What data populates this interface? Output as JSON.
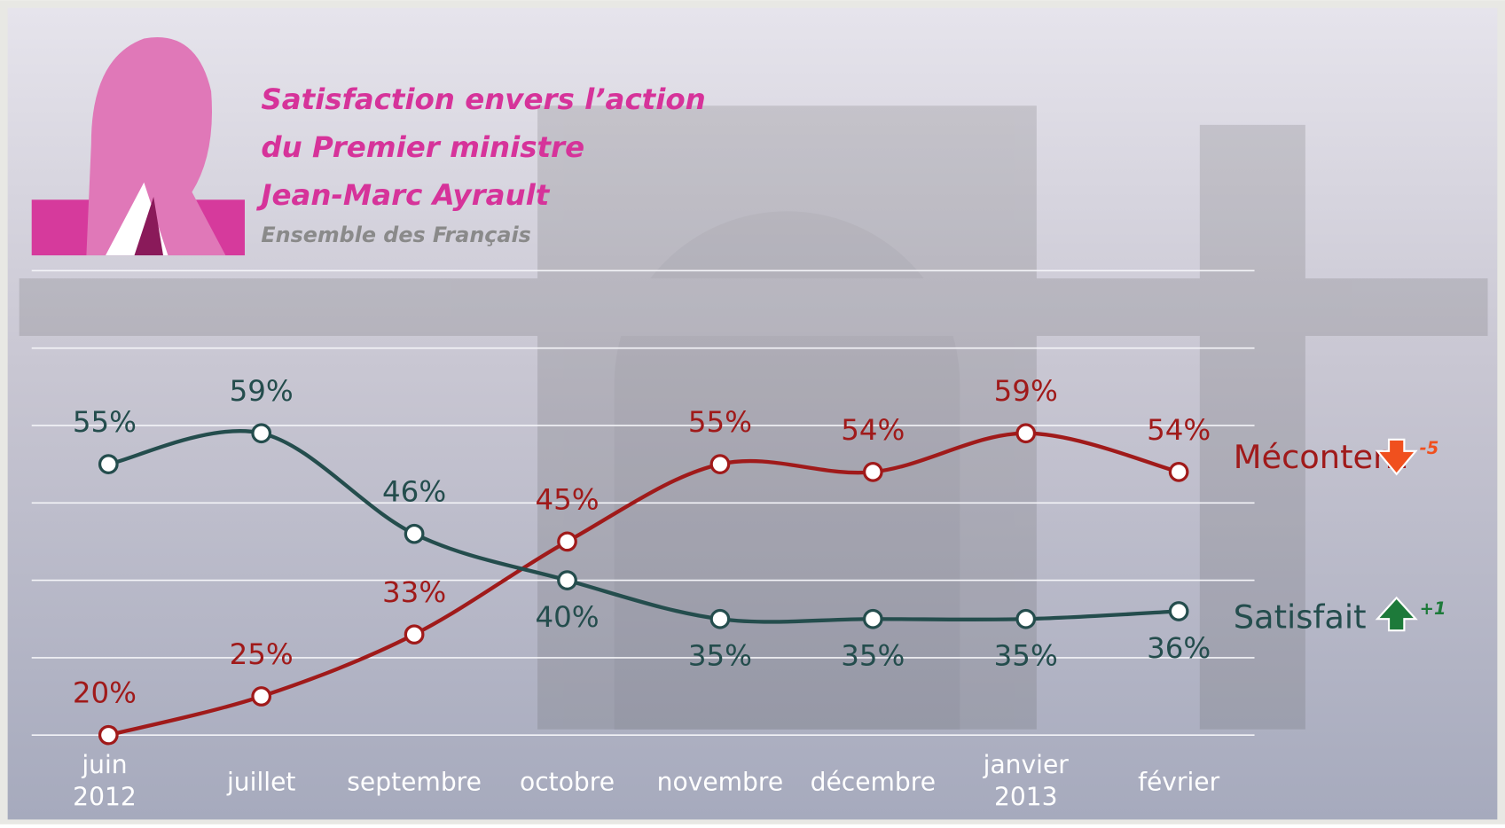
{
  "chart_data": {
    "type": "line",
    "title": [
      "Satisfaction envers l’action",
      "du Premier ministre",
      "Jean-Marc Ayrault"
    ],
    "subtitle": "Ensemble des Français",
    "categories": [
      [
        "juin",
        "2012"
      ],
      [
        "juillet"
      ],
      [
        "septembre"
      ],
      [
        "octobre"
      ],
      [
        "novembre"
      ],
      [
        "décembre"
      ],
      [
        "janvier",
        "2013"
      ],
      [
        "février"
      ]
    ],
    "series": [
      {
        "name": "Mécontent",
        "color": "#a01a1a",
        "change": "-5",
        "values": [
          20,
          25,
          33,
          45,
          55,
          54,
          59,
          54
        ],
        "value_labels": [
          "20%",
          "25%",
          "33%",
          "45%",
          "55%",
          "54%",
          "59%",
          "54%"
        ]
      },
      {
        "name": "Satisfait",
        "color": "#244d4d",
        "change": "+1",
        "values": [
          55,
          59,
          46,
          40,
          35,
          35,
          35,
          36
        ],
        "value_labels": [
          "55%",
          "59%",
          "46%",
          "40%",
          "35%",
          "35%",
          "35%",
          "36%"
        ]
      }
    ],
    "ylim": [
      20,
      80
    ],
    "yticks": [
      20,
      30,
      40,
      50,
      60,
      70,
      80
    ],
    "grid": true
  }
}
